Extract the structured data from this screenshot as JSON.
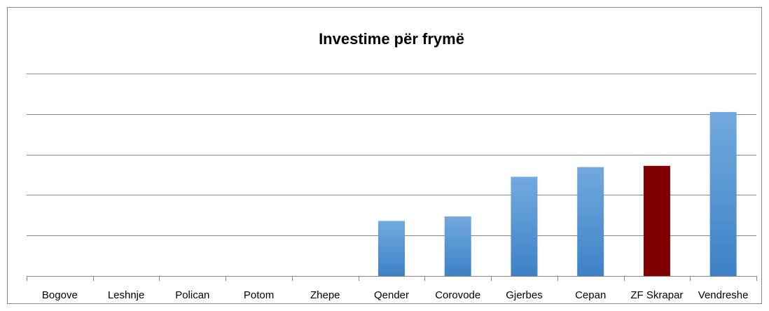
{
  "chart_data": {
    "type": "bar",
    "title": "Investime për frymë",
    "categories": [
      "Bogove",
      "Leshnje",
      "Polican",
      "Potom",
      "Zhepe",
      "Qender",
      "Corovode",
      "Gjerbes",
      "Cepan",
      "ZF Skrapar",
      "Vendreshe"
    ],
    "values": [
      0,
      0,
      0,
      0,
      0,
      1.36,
      1.47,
      2.45,
      2.69,
      2.72,
      4.05
    ],
    "colors": [
      "#5b9bd5",
      "#5b9bd5",
      "#5b9bd5",
      "#5b9bd5",
      "#5b9bd5",
      "#5b9bd5",
      "#5b9bd5",
      "#5b9bd5",
      "#5b9bd5",
      "#800000",
      "#5b9bd5"
    ],
    "ylim": [
      0,
      5
    ],
    "yticks": [
      0,
      1,
      2,
      3,
      4,
      5
    ],
    "grid": true
  }
}
